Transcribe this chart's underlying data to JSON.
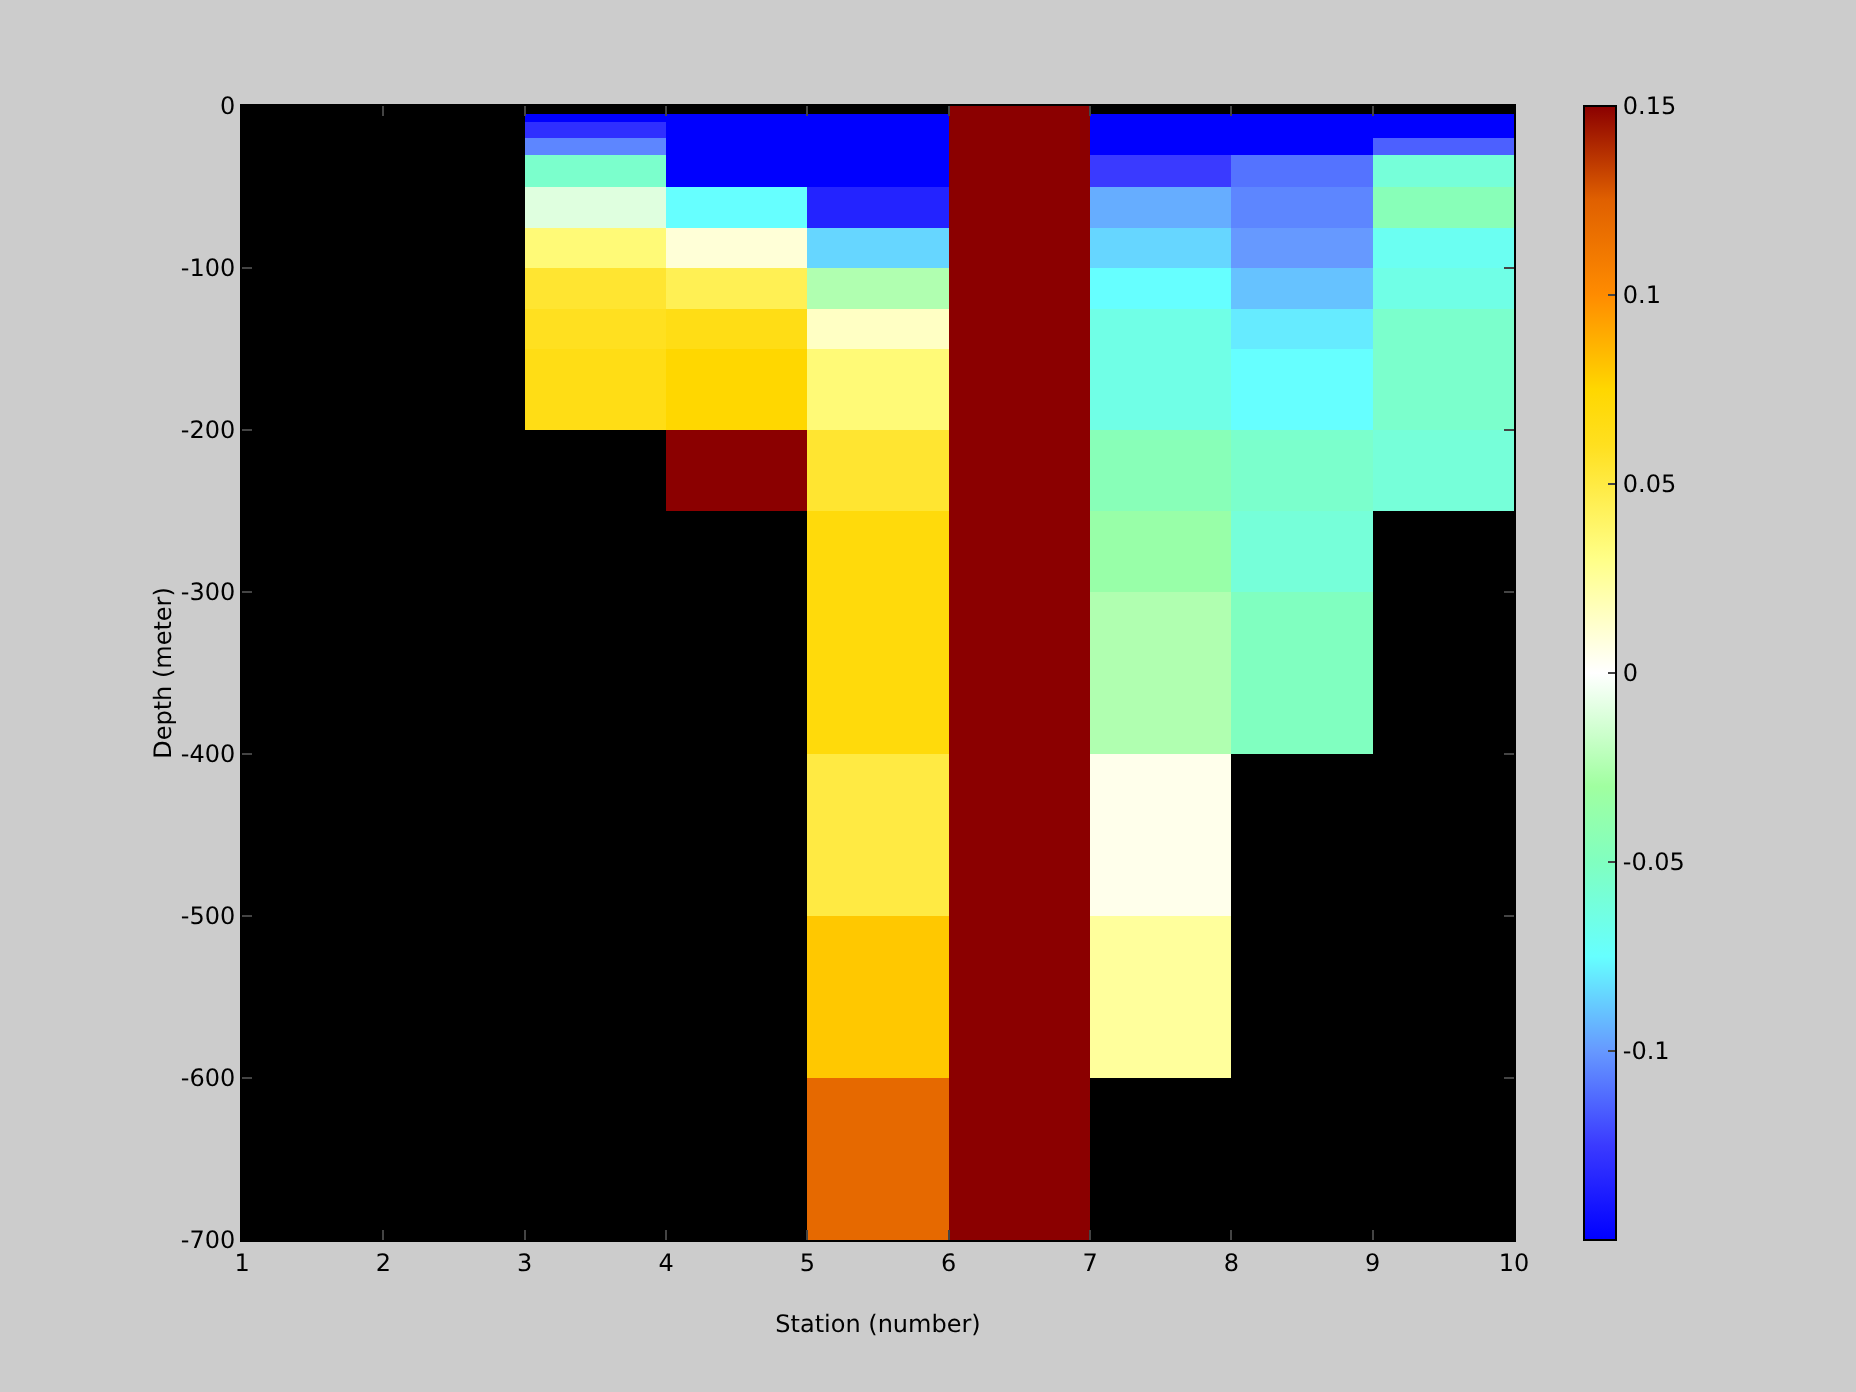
{
  "chart_data": {
    "type": "heatmap",
    "xlabel": "Station (number)",
    "ylabel": "Depth (meter)",
    "x": [
      1.5,
      2.5,
      3.5,
      4.5,
      5.5,
      6.5,
      7.5,
      8.5,
      9.5
    ],
    "y": [
      -2.5,
      -7.5,
      -12.5,
      -17.5,
      -22.5,
      -27.5,
      -32.5,
      -37.5,
      -42.5,
      -47.5,
      -52.5,
      -57.5,
      -62.5,
      -67.5,
      -72.5,
      -77.5,
      -82.5,
      -87.5,
      -92.5,
      -97.5,
      -102.5,
      -107.5,
      -112.5,
      -117.5,
      -122.5,
      -127.5,
      -132.5,
      -137.5,
      -142.5,
      -147.5,
      -152.5,
      -157.5,
      -162.5,
      -167.5,
      -172.5,
      -177.5,
      -182.5,
      -187.5,
      -192.5,
      -197.5,
      -202.5,
      -207.5,
      -212.5,
      -217.5,
      -222.5,
      -227.5,
      -232.5,
      -237.5,
      -242.5,
      -247.5,
      -252.5,
      -257.5,
      -262.5,
      -267.5,
      -272.5,
      -277.5,
      -282.5,
      -287.5,
      -292.5,
      -297.5,
      -302.5,
      -307.5,
      -312.5,
      -317.5,
      -322.5,
      -327.5,
      -332.5,
      -337.5,
      -342.5,
      -347.5,
      -352.5,
      -357.5,
      -362.5,
      -367.5,
      -372.5,
      -377.5,
      -382.5,
      -387.5,
      -392.5,
      -397.5,
      -402.5,
      -407.5,
      -412.5,
      -417.5,
      -422.5,
      -427.5,
      -432.5,
      -437.5,
      -442.5,
      -447.5,
      -452.5,
      -457.5,
      -462.5,
      -467.5,
      -472.5,
      -477.5,
      -482.5,
      -487.5,
      -492.5,
      -497.5,
      -502.5,
      -507.5,
      -512.5,
      -517.5,
      -522.5,
      -527.5,
      -532.5,
      -537.5,
      -542.5,
      -547.5,
      -552.5,
      -557.5,
      -562.5,
      -567.5,
      -572.5,
      -577.5,
      -582.5,
      -587.5,
      -592.5,
      -597.5,
      -602.5,
      -607.5,
      -612.5,
      -617.5,
      -622.5,
      -627.5,
      -632.5,
      -637.5,
      -642.5,
      -647.5,
      -652.5,
      -657.5,
      -662.5,
      -667.5,
      -672.5,
      -677.5,
      -682.5,
      -687.5,
      -692.5,
      -697.5
    ],
    "cells": [
      [
        null,
        null,
        null,
        null,
        null,
        0.15,
        null,
        null,
        null
      ],
      [
        null,
        null,
        -0.15,
        -0.15,
        -0.15,
        0.15,
        -0.15,
        -0.15,
        -0.15
      ],
      [
        null,
        null,
        -0.13,
        -0.15,
        -0.15,
        0.15,
        -0.15,
        -0.15,
        -0.15
      ],
      [
        null,
        null,
        -0.13,
        -0.15,
        -0.15,
        0.15,
        -0.15,
        -0.15,
        -0.15
      ],
      [
        null,
        null,
        -0.105,
        -0.15,
        -0.15,
        0.15,
        -0.15,
        -0.15,
        -0.115
      ],
      [
        null,
        null,
        -0.105,
        -0.15,
        -0.15,
        0.15,
        -0.15,
        -0.15,
        -0.115
      ],
      [
        null,
        null,
        -0.055,
        -0.15,
        -0.15,
        0.15,
        -0.125,
        -0.11,
        -0.06
      ],
      [
        null,
        null,
        -0.055,
        -0.15,
        -0.15,
        0.15,
        -0.125,
        -0.11,
        -0.06
      ],
      [
        null,
        null,
        -0.055,
        -0.15,
        -0.15,
        0.15,
        -0.125,
        -0.11,
        -0.06
      ],
      [
        null,
        null,
        -0.055,
        -0.15,
        -0.15,
        0.15,
        -0.125,
        -0.11,
        -0.06
      ],
      [
        null,
        null,
        -0.01,
        -0.075,
        -0.135,
        0.15,
        -0.095,
        -0.105,
        -0.045
      ],
      [
        null,
        null,
        -0.01,
        -0.075,
        -0.135,
        0.15,
        -0.095,
        -0.105,
        -0.045
      ],
      [
        null,
        null,
        -0.01,
        -0.075,
        -0.135,
        0.15,
        -0.095,
        -0.105,
        -0.045
      ],
      [
        null,
        null,
        -0.01,
        -0.075,
        -0.135,
        0.15,
        -0.095,
        -0.105,
        -0.045
      ],
      [
        null,
        null,
        -0.01,
        -0.075,
        -0.135,
        0.15,
        -0.095,
        -0.105,
        -0.045
      ],
      [
        null,
        null,
        0.035,
        0.01,
        -0.085,
        0.15,
        -0.085,
        -0.1,
        -0.07
      ],
      [
        null,
        null,
        0.035,
        0.01,
        -0.085,
        0.15,
        -0.085,
        -0.1,
        -0.07
      ],
      [
        null,
        null,
        0.035,
        0.01,
        -0.085,
        0.15,
        -0.085,
        -0.1,
        -0.07
      ],
      [
        null,
        null,
        0.035,
        0.01,
        -0.085,
        0.15,
        -0.085,
        -0.1,
        -0.07
      ],
      [
        null,
        null,
        0.035,
        0.01,
        -0.085,
        0.15,
        -0.085,
        -0.1,
        -0.07
      ],
      [
        null,
        null,
        0.055,
        0.045,
        -0.025,
        0.15,
        -0.075,
        -0.09,
        -0.065
      ],
      [
        null,
        null,
        0.055,
        0.045,
        -0.025,
        0.15,
        -0.075,
        -0.09,
        -0.065
      ],
      [
        null,
        null,
        0.055,
        0.045,
        -0.025,
        0.15,
        -0.075,
        -0.09,
        -0.065
      ],
      [
        null,
        null,
        0.055,
        0.045,
        -0.025,
        0.15,
        -0.075,
        -0.09,
        -0.065
      ],
      [
        null,
        null,
        0.055,
        0.045,
        -0.025,
        0.15,
        -0.075,
        -0.09,
        -0.065
      ],
      [
        null,
        null,
        0.06,
        0.065,
        0.015,
        0.15,
        -0.065,
        -0.08,
        -0.055
      ],
      [
        null,
        null,
        0.06,
        0.065,
        0.015,
        0.15,
        -0.065,
        -0.08,
        -0.055
      ],
      [
        null,
        null,
        0.06,
        0.065,
        0.015,
        0.15,
        -0.065,
        -0.08,
        -0.055
      ],
      [
        null,
        null,
        0.06,
        0.065,
        0.015,
        0.15,
        -0.065,
        -0.08,
        -0.055
      ],
      [
        null,
        null,
        0.06,
        0.065,
        0.015,
        0.15,
        -0.065,
        -0.08,
        -0.055
      ],
      [
        null,
        null,
        0.065,
        0.075,
        0.035,
        0.15,
        -0.065,
        -0.075,
        -0.055
      ],
      [
        null,
        null,
        0.065,
        0.075,
        0.035,
        0.15,
        -0.065,
        -0.075,
        -0.055
      ],
      [
        null,
        null,
        0.065,
        0.075,
        0.035,
        0.15,
        -0.065,
        -0.075,
        -0.055
      ],
      [
        null,
        null,
        0.065,
        0.075,
        0.035,
        0.15,
        -0.065,
        -0.075,
        -0.055
      ],
      [
        null,
        null,
        0.065,
        0.075,
        0.035,
        0.15,
        -0.065,
        -0.075,
        -0.055
      ],
      [
        null,
        null,
        0.065,
        0.075,
        0.035,
        0.15,
        -0.065,
        -0.075,
        -0.055
      ],
      [
        null,
        null,
        0.065,
        0.075,
        0.035,
        0.15,
        -0.065,
        -0.075,
        -0.055
      ],
      [
        null,
        null,
        0.065,
        0.075,
        0.035,
        0.15,
        -0.065,
        -0.075,
        -0.055
      ],
      [
        null,
        null,
        0.065,
        0.075,
        0.035,
        0.15,
        -0.065,
        -0.075,
        -0.055
      ],
      [
        null,
        null,
        0.065,
        0.075,
        0.035,
        0.15,
        -0.065,
        -0.075,
        -0.055
      ],
      [
        null,
        null,
        null,
        0.15,
        0.055,
        0.15,
        -0.045,
        -0.055,
        -0.06
      ],
      [
        null,
        null,
        null,
        0.15,
        0.055,
        0.15,
        -0.045,
        -0.055,
        -0.06
      ],
      [
        null,
        null,
        null,
        0.15,
        0.055,
        0.15,
        -0.045,
        -0.055,
        -0.06
      ],
      [
        null,
        null,
        null,
        0.15,
        0.055,
        0.15,
        -0.045,
        -0.055,
        -0.06
      ],
      [
        null,
        null,
        null,
        0.15,
        0.055,
        0.15,
        -0.045,
        -0.055,
        -0.06
      ],
      [
        null,
        null,
        null,
        0.15,
        0.055,
        0.15,
        -0.045,
        -0.055,
        -0.06
      ],
      [
        null,
        null,
        null,
        0.15,
        0.055,
        0.15,
        -0.045,
        -0.055,
        -0.06
      ],
      [
        null,
        null,
        null,
        0.15,
        0.055,
        0.15,
        -0.045,
        -0.055,
        -0.06
      ],
      [
        null,
        null,
        null,
        0.15,
        0.055,
        0.15,
        -0.045,
        -0.055,
        -0.06
      ],
      [
        null,
        null,
        null,
        0.15,
        0.055,
        0.15,
        -0.045,
        -0.055,
        -0.06
      ],
      [
        null,
        null,
        null,
        null,
        0.07,
        0.15,
        -0.035,
        -0.06,
        null
      ],
      [
        null,
        null,
        null,
        null,
        0.07,
        0.15,
        -0.035,
        -0.06,
        null
      ],
      [
        null,
        null,
        null,
        null,
        0.07,
        0.15,
        -0.035,
        -0.06,
        null
      ],
      [
        null,
        null,
        null,
        null,
        0.07,
        0.15,
        -0.035,
        -0.06,
        null
      ],
      [
        null,
        null,
        null,
        null,
        0.07,
        0.15,
        -0.035,
        -0.06,
        null
      ],
      [
        null,
        null,
        null,
        null,
        0.07,
        0.15,
        -0.035,
        -0.06,
        null
      ],
      [
        null,
        null,
        null,
        null,
        0.07,
        0.15,
        -0.035,
        -0.06,
        null
      ],
      [
        null,
        null,
        null,
        null,
        0.07,
        0.15,
        -0.035,
        -0.06,
        null
      ],
      [
        null,
        null,
        null,
        null,
        0.07,
        0.15,
        -0.035,
        -0.06,
        null
      ],
      [
        null,
        null,
        null,
        null,
        0.07,
        0.15,
        -0.035,
        -0.06,
        null
      ],
      [
        null,
        null,
        null,
        null,
        0.07,
        0.15,
        -0.025,
        -0.05,
        null
      ],
      [
        null,
        null,
        null,
        null,
        0.07,
        0.15,
        -0.025,
        -0.05,
        null
      ],
      [
        null,
        null,
        null,
        null,
        0.07,
        0.15,
        -0.025,
        -0.05,
        null
      ],
      [
        null,
        null,
        null,
        null,
        0.07,
        0.15,
        -0.025,
        -0.05,
        null
      ],
      [
        null,
        null,
        null,
        null,
        0.07,
        0.15,
        -0.025,
        -0.05,
        null
      ],
      [
        null,
        null,
        null,
        null,
        0.07,
        0.15,
        -0.025,
        -0.05,
        null
      ],
      [
        null,
        null,
        null,
        null,
        0.07,
        0.15,
        -0.025,
        -0.05,
        null
      ],
      [
        null,
        null,
        null,
        null,
        0.07,
        0.15,
        -0.025,
        -0.05,
        null
      ],
      [
        null,
        null,
        null,
        null,
        0.07,
        0.15,
        -0.025,
        -0.05,
        null
      ],
      [
        null,
        null,
        null,
        null,
        0.07,
        0.15,
        -0.025,
        -0.05,
        null
      ],
      [
        null,
        null,
        null,
        null,
        0.07,
        0.15,
        -0.025,
        -0.05,
        null
      ],
      [
        null,
        null,
        null,
        null,
        0.07,
        0.15,
        -0.025,
        -0.05,
        null
      ],
      [
        null,
        null,
        null,
        null,
        0.07,
        0.15,
        -0.025,
        -0.05,
        null
      ],
      [
        null,
        null,
        null,
        null,
        0.07,
        0.15,
        -0.025,
        -0.05,
        null
      ],
      [
        null,
        null,
        null,
        null,
        0.07,
        0.15,
        -0.025,
        -0.05,
        null
      ],
      [
        null,
        null,
        null,
        null,
        0.07,
        0.15,
        -0.025,
        -0.05,
        null
      ],
      [
        null,
        null,
        null,
        null,
        0.07,
        0.15,
        -0.025,
        -0.05,
        null
      ],
      [
        null,
        null,
        null,
        null,
        0.07,
        0.15,
        -0.025,
        -0.05,
        null
      ],
      [
        null,
        null,
        null,
        null,
        0.07,
        0.15,
        -0.025,
        -0.05,
        null
      ],
      [
        null,
        null,
        null,
        null,
        0.07,
        0.15,
        -0.025,
        -0.05,
        null
      ],
      [
        null,
        null,
        null,
        null,
        0.05,
        0.15,
        0.005,
        null,
        null
      ],
      [
        null,
        null,
        null,
        null,
        0.05,
        0.15,
        0.005,
        null,
        null
      ],
      [
        null,
        null,
        null,
        null,
        0.05,
        0.15,
        0.005,
        null,
        null
      ],
      [
        null,
        null,
        null,
        null,
        0.05,
        0.15,
        0.005,
        null,
        null
      ],
      [
        null,
        null,
        null,
        null,
        0.05,
        0.15,
        0.005,
        null,
        null
      ],
      [
        null,
        null,
        null,
        null,
        0.05,
        0.15,
        0.005,
        null,
        null
      ],
      [
        null,
        null,
        null,
        null,
        0.05,
        0.15,
        0.005,
        null,
        null
      ],
      [
        null,
        null,
        null,
        null,
        0.05,
        0.15,
        0.005,
        null,
        null
      ],
      [
        null,
        null,
        null,
        null,
        0.05,
        0.15,
        0.005,
        null,
        null
      ],
      [
        null,
        null,
        null,
        null,
        0.05,
        0.15,
        0.005,
        null,
        null
      ],
      [
        null,
        null,
        null,
        null,
        0.05,
        0.15,
        0.005,
        null,
        null
      ],
      [
        null,
        null,
        null,
        null,
        0.05,
        0.15,
        0.005,
        null,
        null
      ],
      [
        null,
        null,
        null,
        null,
        0.05,
        0.15,
        0.005,
        null,
        null
      ],
      [
        null,
        null,
        null,
        null,
        0.05,
        0.15,
        0.005,
        null,
        null
      ],
      [
        null,
        null,
        null,
        null,
        0.05,
        0.15,
        0.005,
        null,
        null
      ],
      [
        null,
        null,
        null,
        null,
        0.05,
        0.15,
        0.005,
        null,
        null
      ],
      [
        null,
        null,
        null,
        null,
        0.05,
        0.15,
        0.005,
        null,
        null
      ],
      [
        null,
        null,
        null,
        null,
        0.05,
        0.15,
        0.005,
        null,
        null
      ],
      [
        null,
        null,
        null,
        null,
        0.05,
        0.15,
        0.005,
        null,
        null
      ],
      [
        null,
        null,
        null,
        null,
        0.05,
        0.15,
        0.005,
        null,
        null
      ],
      [
        null,
        null,
        null,
        null,
        0.08,
        0.15,
        0.025,
        null,
        null
      ],
      [
        null,
        null,
        null,
        null,
        0.08,
        0.15,
        0.025,
        null,
        null
      ],
      [
        null,
        null,
        null,
        null,
        0.08,
        0.15,
        0.025,
        null,
        null
      ],
      [
        null,
        null,
        null,
        null,
        0.08,
        0.15,
        0.025,
        null,
        null
      ],
      [
        null,
        null,
        null,
        null,
        0.08,
        0.15,
        0.025,
        null,
        null
      ],
      [
        null,
        null,
        null,
        null,
        0.08,
        0.15,
        0.025,
        null,
        null
      ],
      [
        null,
        null,
        null,
        null,
        0.08,
        0.15,
        0.025,
        null,
        null
      ],
      [
        null,
        null,
        null,
        null,
        0.08,
        0.15,
        0.025,
        null,
        null
      ],
      [
        null,
        null,
        null,
        null,
        0.08,
        0.15,
        0.025,
        null,
        null
      ],
      [
        null,
        null,
        null,
        null,
        0.08,
        0.15,
        0.025,
        null,
        null
      ],
      [
        null,
        null,
        null,
        null,
        0.08,
        0.15,
        0.025,
        null,
        null
      ],
      [
        null,
        null,
        null,
        null,
        0.08,
        0.15,
        0.025,
        null,
        null
      ],
      [
        null,
        null,
        null,
        null,
        0.08,
        0.15,
        0.025,
        null,
        null
      ],
      [
        null,
        null,
        null,
        null,
        0.08,
        0.15,
        0.025,
        null,
        null
      ],
      [
        null,
        null,
        null,
        null,
        0.08,
        0.15,
        0.025,
        null,
        null
      ],
      [
        null,
        null,
        null,
        null,
        0.08,
        0.15,
        0.025,
        null,
        null
      ],
      [
        null,
        null,
        null,
        null,
        0.08,
        0.15,
        0.025,
        null,
        null
      ],
      [
        null,
        null,
        null,
        null,
        0.08,
        0.15,
        0.025,
        null,
        null
      ],
      [
        null,
        null,
        null,
        null,
        0.08,
        0.15,
        0.025,
        null,
        null
      ],
      [
        null,
        null,
        null,
        null,
        0.08,
        0.15,
        0.025,
        null,
        null
      ],
      [
        null,
        null,
        null,
        null,
        0.12,
        0.15,
        null,
        null,
        null
      ],
      [
        null,
        null,
        null,
        null,
        0.12,
        0.15,
        null,
        null,
        null
      ],
      [
        null,
        null,
        null,
        null,
        0.12,
        0.15,
        null,
        null,
        null
      ],
      [
        null,
        null,
        null,
        null,
        0.12,
        0.15,
        null,
        null,
        null
      ],
      [
        null,
        null,
        null,
        null,
        0.12,
        0.15,
        null,
        null,
        null
      ],
      [
        null,
        null,
        null,
        null,
        0.12,
        0.15,
        null,
        null,
        null
      ],
      [
        null,
        null,
        null,
        null,
        0.12,
        0.15,
        null,
        null,
        null
      ],
      [
        null,
        null,
        null,
        null,
        0.12,
        0.15,
        null,
        null,
        null
      ],
      [
        null,
        null,
        null,
        null,
        0.12,
        0.15,
        null,
        null,
        null
      ],
      [
        null,
        null,
        null,
        null,
        0.12,
        0.15,
        null,
        null,
        null
      ],
      [
        null,
        null,
        null,
        null,
        0.12,
        0.15,
        null,
        null,
        null
      ],
      [
        null,
        null,
        null,
        null,
        0.12,
        0.15,
        null,
        null,
        null
      ],
      [
        null,
        null,
        null,
        null,
        0.12,
        0.15,
        null,
        null,
        null
      ],
      [
        null,
        null,
        null,
        null,
        0.12,
        0.15,
        null,
        null,
        null
      ],
      [
        null,
        null,
        null,
        null,
        0.12,
        0.15,
        null,
        null,
        null
      ],
      [
        null,
        null,
        null,
        null,
        0.12,
        0.15,
        null,
        null,
        null
      ],
      [
        null,
        null,
        null,
        null,
        0.12,
        0.15,
        null,
        null,
        null
      ],
      [
        null,
        null,
        null,
        null,
        0.12,
        0.15,
        null,
        null,
        null
      ],
      [
        null,
        null,
        null,
        null,
        0.12,
        0.15,
        null,
        null,
        null
      ],
      [
        null,
        null,
        null,
        null,
        0.12,
        0.15,
        null,
        null,
        null
      ]
    ],
    "clim": [
      -0.15,
      0.15
    ],
    "cticks": [
      -0.1,
      -0.05,
      0,
      0.05,
      0.1,
      0.15
    ],
    "xlim": [
      1,
      10
    ],
    "ylim": [
      -700,
      0
    ],
    "xticks": [
      1,
      2,
      3,
      4,
      5,
      6,
      7,
      8,
      9,
      10
    ],
    "yticks": [
      -700,
      -600,
      -500,
      -400,
      -300,
      -200,
      -100,
      0
    ]
  }
}
